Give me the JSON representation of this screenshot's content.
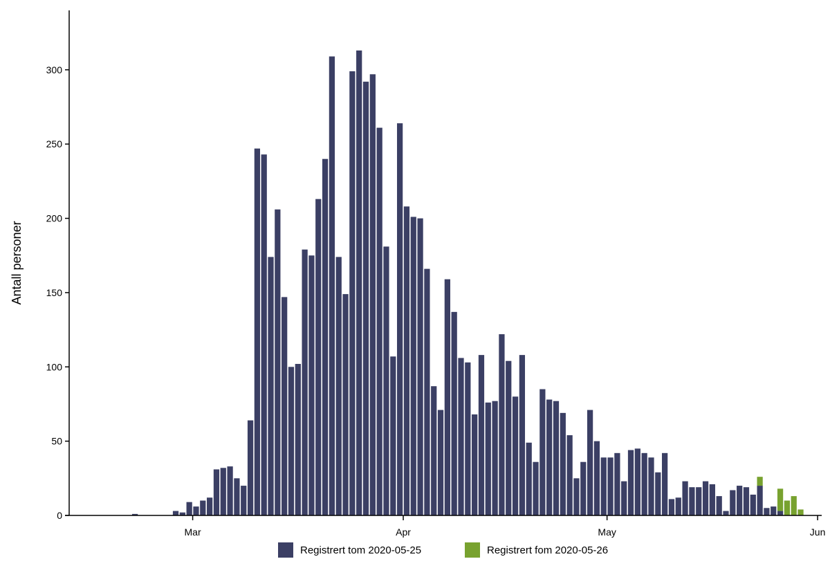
{
  "chart_data": {
    "type": "bar",
    "stacked": true,
    "ylabel": "Antall personer",
    "xlabel": "",
    "ylim": [
      0,
      340
    ],
    "yticks": [
      0,
      50,
      100,
      150,
      200,
      250,
      300
    ],
    "xticks": [
      {
        "label": "Mar",
        "date": "2020-03-01"
      },
      {
        "label": "Apr",
        "date": "2020-04-01"
      },
      {
        "label": "May",
        "date": "2020-05-01"
      },
      {
        "label": "Jun",
        "date": "2020-06-01"
      }
    ],
    "xrange": [
      "2020-02-16",
      "2020-06-01"
    ],
    "grid": false,
    "legend_position": "bottom",
    "dates": [
      "2020-02-16",
      "2020-02-17",
      "2020-02-18",
      "2020-02-19",
      "2020-02-20",
      "2020-02-21",
      "2020-02-22",
      "2020-02-23",
      "2020-02-24",
      "2020-02-25",
      "2020-02-26",
      "2020-02-27",
      "2020-02-28",
      "2020-02-29",
      "2020-03-01",
      "2020-03-02",
      "2020-03-03",
      "2020-03-04",
      "2020-03-05",
      "2020-03-06",
      "2020-03-07",
      "2020-03-08",
      "2020-03-09",
      "2020-03-10",
      "2020-03-11",
      "2020-03-12",
      "2020-03-13",
      "2020-03-14",
      "2020-03-15",
      "2020-03-16",
      "2020-03-17",
      "2020-03-18",
      "2020-03-19",
      "2020-03-20",
      "2020-03-21",
      "2020-03-22",
      "2020-03-23",
      "2020-03-24",
      "2020-03-25",
      "2020-03-26",
      "2020-03-27",
      "2020-03-28",
      "2020-03-29",
      "2020-03-30",
      "2020-03-31",
      "2020-04-01",
      "2020-04-02",
      "2020-04-03",
      "2020-04-04",
      "2020-04-05",
      "2020-04-06",
      "2020-04-07",
      "2020-04-08",
      "2020-04-09",
      "2020-04-10",
      "2020-04-11",
      "2020-04-12",
      "2020-04-13",
      "2020-04-14",
      "2020-04-15",
      "2020-04-16",
      "2020-04-17",
      "2020-04-18",
      "2020-04-19",
      "2020-04-20",
      "2020-04-21",
      "2020-04-22",
      "2020-04-23",
      "2020-04-24",
      "2020-04-25",
      "2020-04-26",
      "2020-04-27",
      "2020-04-28",
      "2020-04-29",
      "2020-04-30",
      "2020-05-01",
      "2020-05-02",
      "2020-05-03",
      "2020-05-04",
      "2020-05-05",
      "2020-05-06",
      "2020-05-07",
      "2020-05-08",
      "2020-05-09",
      "2020-05-10",
      "2020-05-11",
      "2020-05-12",
      "2020-05-13",
      "2020-05-14",
      "2020-05-15",
      "2020-05-16",
      "2020-05-17",
      "2020-05-18",
      "2020-05-19",
      "2020-05-20",
      "2020-05-21",
      "2020-05-22",
      "2020-05-23",
      "2020-05-24",
      "2020-05-25",
      "2020-05-26",
      "2020-05-27",
      "2020-05-28",
      "2020-05-29",
      "2020-05-30"
    ],
    "series": [
      {
        "name": "Registrert tom 2020-05-25",
        "color": "#3b3f64",
        "values": [
          0,
          0,
          0,
          0,
          0,
          1,
          0,
          0,
          0,
          0,
          0,
          3,
          2,
          9,
          6,
          10,
          12,
          31,
          32,
          33,
          25,
          20,
          64,
          247,
          243,
          174,
          206,
          147,
          100,
          102,
          179,
          175,
          213,
          240,
          309,
          174,
          149,
          299,
          313,
          292,
          297,
          261,
          181,
          107,
          264,
          208,
          201,
          200,
          166,
          87,
          71,
          159,
          137,
          106,
          103,
          68,
          108,
          76,
          77,
          122,
          104,
          80,
          108,
          49,
          36,
          85,
          78,
          77,
          69,
          54,
          25,
          36,
          71,
          50,
          39,
          39,
          42,
          23,
          44,
          45,
          42,
          39,
          29,
          42,
          11,
          12,
          23,
          19,
          19,
          23,
          21,
          13,
          3,
          17,
          20,
          19,
          14,
          20,
          5,
          6,
          3,
          0,
          0,
          0,
          0
        ]
      },
      {
        "name": "Registrert fom 2020-05-26",
        "color": "#78a22f",
        "values": [
          0,
          0,
          0,
          0,
          0,
          0,
          0,
          0,
          0,
          0,
          0,
          0,
          0,
          0,
          0,
          0,
          0,
          0,
          0,
          0,
          0,
          0,
          0,
          0,
          0,
          0,
          0,
          0,
          0,
          0,
          0,
          0,
          0,
          0,
          0,
          0,
          0,
          0,
          0,
          0,
          0,
          0,
          0,
          0,
          0,
          0,
          0,
          0,
          0,
          0,
          0,
          0,
          0,
          0,
          0,
          0,
          0,
          0,
          0,
          0,
          0,
          0,
          0,
          0,
          0,
          0,
          0,
          0,
          0,
          0,
          0,
          0,
          0,
          0,
          0,
          0,
          0,
          0,
          0,
          0,
          0,
          0,
          0,
          0,
          0,
          0,
          0,
          0,
          0,
          0,
          0,
          0,
          0,
          0,
          0,
          0,
          0,
          6,
          0,
          0,
          15,
          10,
          13,
          4,
          0
        ]
      }
    ]
  }
}
